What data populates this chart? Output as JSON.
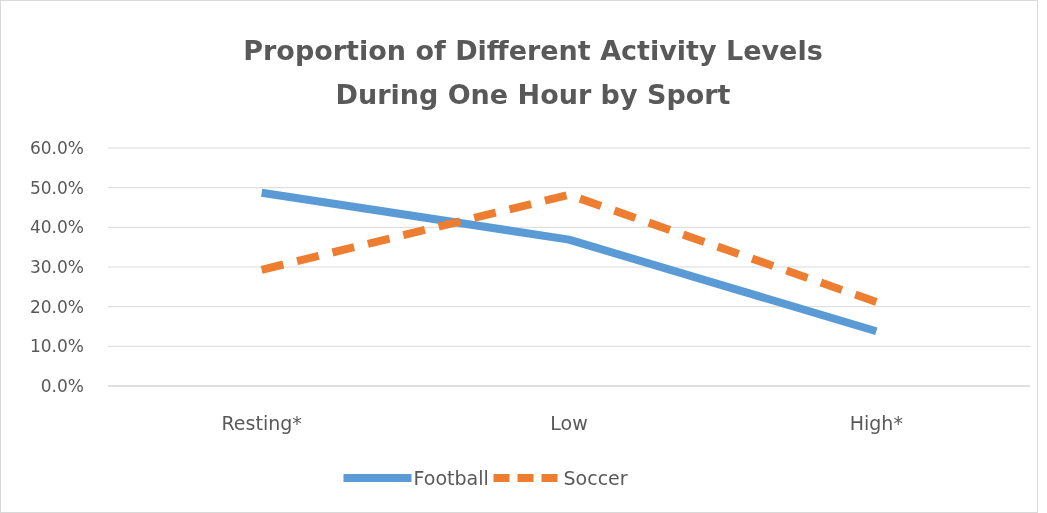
{
  "chart_data": {
    "type": "line",
    "title": "Proportion of Different Activity Levels\nDuring One Hour by Sport",
    "categories": [
      "Resting*",
      "Low",
      "High*"
    ],
    "series": [
      {
        "name": "Football",
        "color": "#5b9bd5",
        "values": [
          48.7,
          36.9,
          13.8
        ],
        "line_style": "solid"
      },
      {
        "name": "Soccer",
        "color": "#ed7d31",
        "values": [
          29.3,
          48.2,
          21.2
        ],
        "line_style": "dashed"
      }
    ],
    "ylim": [
      0,
      60
    ],
    "yticks": [
      {
        "value": 0,
        "label": "0.0%"
      },
      {
        "value": 10,
        "label": "10.0%"
      },
      {
        "value": 20,
        "label": "20.0%"
      },
      {
        "value": 30,
        "label": "30.0%"
      },
      {
        "value": 40,
        "label": "40.0%"
      },
      {
        "value": 50,
        "label": "50.0%"
      },
      {
        "value": 60,
        "label": "60.0%"
      }
    ],
    "grid": "y",
    "legend": "bottom",
    "marker": "none"
  }
}
